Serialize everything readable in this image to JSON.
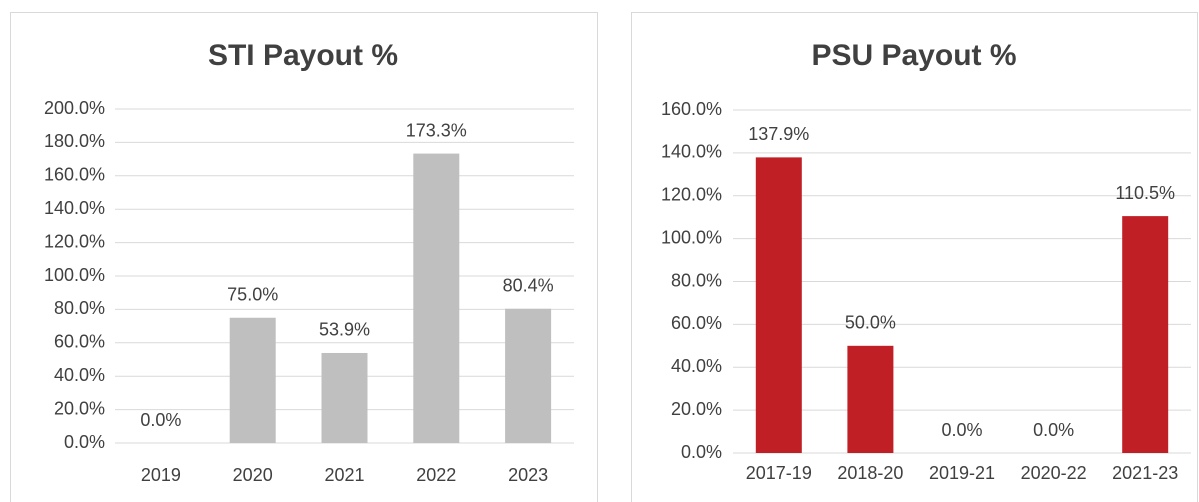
{
  "chart_data": [
    {
      "type": "bar",
      "title": "STI Payout %",
      "categories": [
        "2019",
        "2020",
        "2021",
        "2022",
        "2023"
      ],
      "values": [
        0,
        75,
        53.9,
        173.3,
        80.4
      ],
      "value_labels": [
        "0.0%",
        "75.0%",
        "53.9%",
        "173.3%",
        "80.4%"
      ],
      "color": "#bfbfbf",
      "grid": true,
      "ylim": [
        0,
        200
      ],
      "yticks": [
        {
          "value": 0,
          "label": "0.0%"
        },
        {
          "value": 20,
          "label": "20.0%"
        },
        {
          "value": 40,
          "label": "40.0%"
        },
        {
          "value": 60,
          "label": "60.0%"
        },
        {
          "value": 80,
          "label": "80.0%"
        },
        {
          "value": 100,
          "label": "100.0%"
        },
        {
          "value": 120,
          "label": "120.0%"
        },
        {
          "value": 140,
          "label": "140.0%"
        },
        {
          "value": 160,
          "label": "160.0%"
        },
        {
          "value": 180,
          "label": "180.0%"
        },
        {
          "value": 200,
          "label": "200.0%"
        }
      ]
    },
    {
      "type": "bar",
      "title": "PSU Payout %",
      "categories": [
        "2017-19",
        "2018-20",
        "2019-21",
        "2020-22",
        "2021-23"
      ],
      "values": [
        137.9,
        50,
        0,
        0,
        110.5
      ],
      "value_labels": [
        "137.9%",
        "50.0%",
        "0.0%",
        "0.0%",
        "110.5%"
      ],
      "color": "#c01f26",
      "grid": true,
      "ylim": [
        0,
        160
      ],
      "yticks": [
        {
          "value": 0,
          "label": "0.0%"
        },
        {
          "value": 20,
          "label": "20.0%"
        },
        {
          "value": 40,
          "label": "40.0%"
        },
        {
          "value": 60,
          "label": "60.0%"
        },
        {
          "value": 80,
          "label": "80.0%"
        },
        {
          "value": 100,
          "label": "100.0%"
        },
        {
          "value": 120,
          "label": "120.0%"
        },
        {
          "value": 140,
          "label": "140.0%"
        },
        {
          "value": 160,
          "label": "160.0%"
        }
      ]
    }
  ]
}
